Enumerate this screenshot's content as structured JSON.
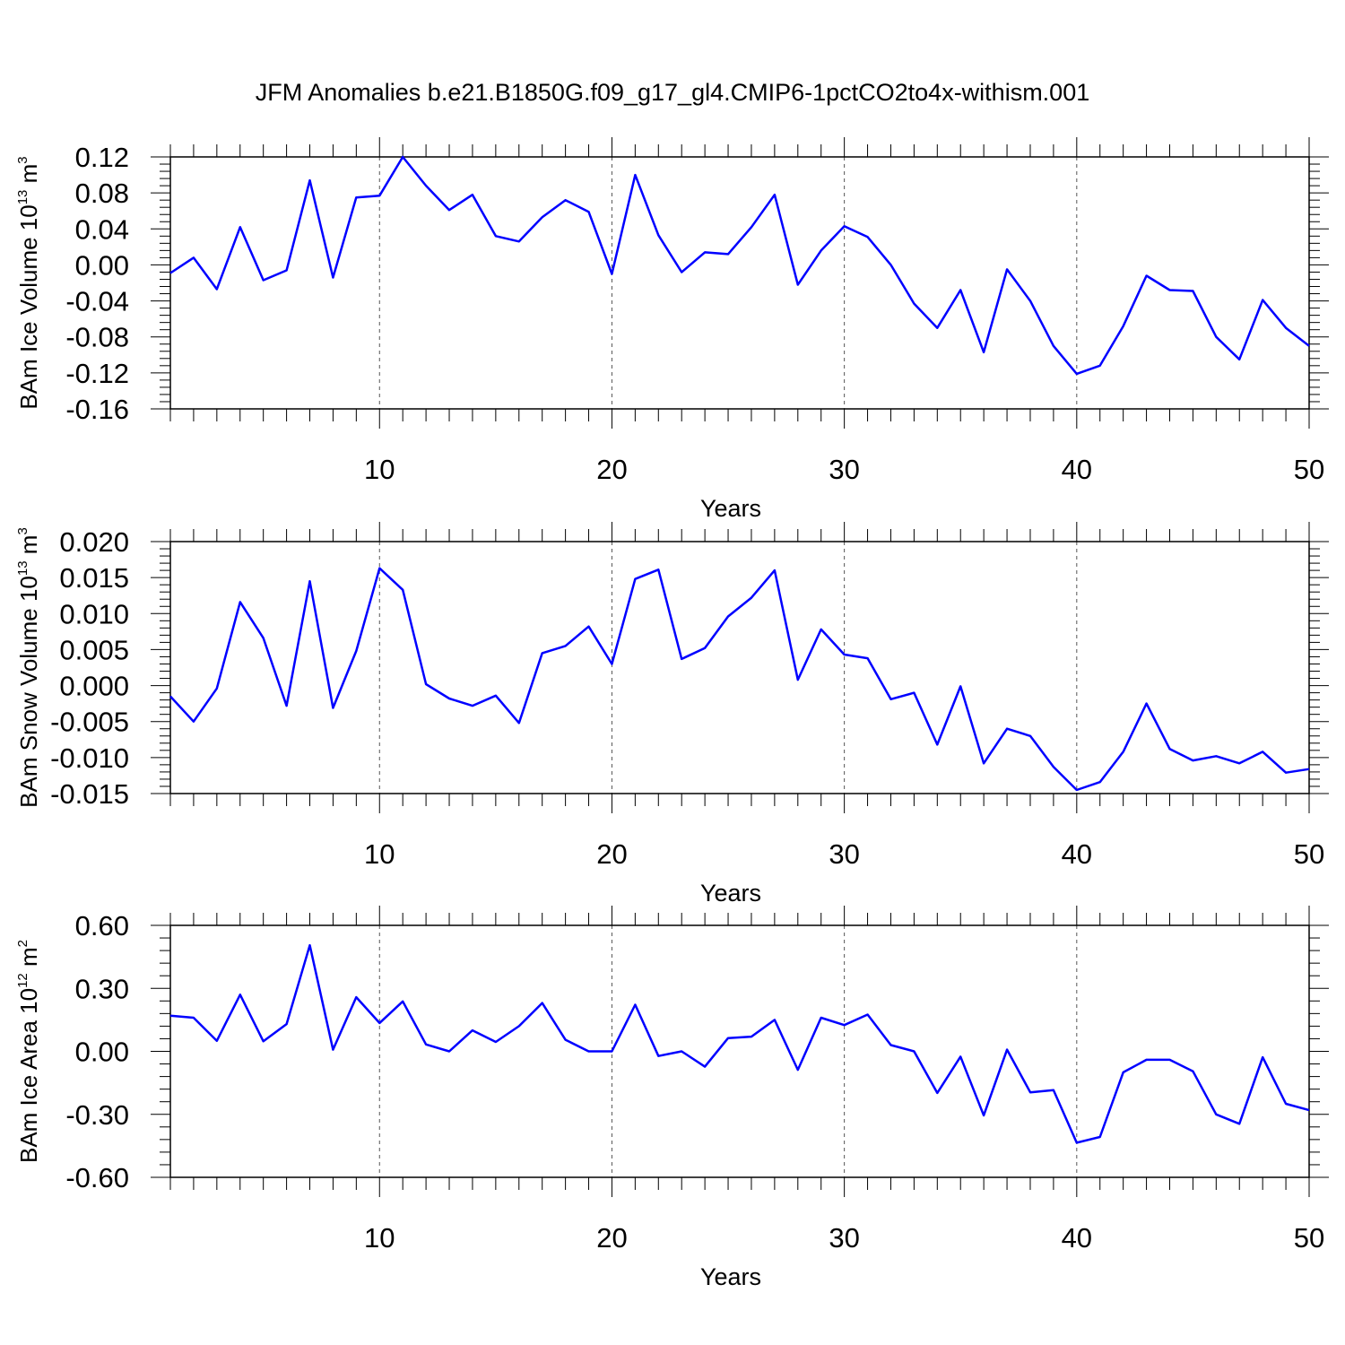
{
  "title": "JFM Anomalies b.e21.B1850G.f09_g17_gl4.CMIP6-1pctCO2to4x-withism.001",
  "colors": {
    "line": "#0000ff",
    "axis": "#000000",
    "grid": "#555555"
  },
  "chart_data": [
    {
      "type": "line",
      "ylabel": "BAm Ice Volume 10¹³ m³",
      "ylabel_parts": {
        "pre": "BAm Ice Volume 10",
        "exp": "13",
        "unit": " m",
        "unit_exp": "3"
      },
      "xlabel": "Years",
      "xlim": [
        1,
        50
      ],
      "ylim": [
        -0.16,
        0.12
      ],
      "xticks": [
        "10",
        "20",
        "30",
        "40",
        "50"
      ],
      "yticks": [
        "0.12",
        "0.08",
        "0.04",
        "0.00",
        "-0.04",
        "-0.08",
        "-0.12",
        "-0.16"
      ],
      "grid": "dashed vertical at x ticks",
      "series": [
        {
          "x": [
            1,
            2,
            3,
            4,
            5,
            6,
            7,
            8,
            9,
            10,
            11,
            12,
            13,
            14,
            15,
            16,
            17,
            18,
            19,
            20,
            21,
            22,
            23,
            24,
            25,
            26,
            27,
            28,
            29,
            30,
            31,
            32,
            33,
            34,
            35,
            36,
            37,
            38,
            39,
            40,
            41,
            42,
            43,
            44,
            45,
            46,
            47,
            48,
            49,
            50
          ],
          "values": [
            -0.009,
            0.008,
            -0.027,
            0.042,
            -0.017,
            -0.006,
            0.094,
            -0.014,
            0.075,
            0.077,
            0.12,
            0.088,
            0.061,
            0.078,
            0.032,
            0.026,
            0.053,
            0.072,
            0.059,
            -0.01,
            0.1,
            0.033,
            -0.008,
            0.014,
            0.012,
            0.042,
            0.078,
            -0.022,
            0.016,
            0.043,
            0.031,
            0.0,
            -0.043,
            -0.07,
            -0.028,
            -0.097,
            -0.005,
            -0.04,
            -0.09,
            -0.121,
            -0.112,
            -0.068,
            -0.012,
            -0.028,
            -0.029,
            -0.08,
            -0.105,
            -0.039,
            -0.07,
            -0.09
          ]
        }
      ]
    },
    {
      "type": "line",
      "ylabel": "BAm Snow Volume 10¹³ m³",
      "ylabel_parts": {
        "pre": "BAm Snow Volume 10",
        "exp": "13",
        "unit": " m",
        "unit_exp": "3"
      },
      "xlabel": "Years",
      "xlim": [
        1,
        50
      ],
      "ylim": [
        -0.015,
        0.02
      ],
      "xticks": [
        "10",
        "20",
        "30",
        "40",
        "50"
      ],
      "yticks": [
        "0.020",
        "0.015",
        "0.010",
        "0.005",
        "0.000",
        "-0.005",
        "-0.010",
        "-0.015"
      ],
      "grid": "dashed vertical at x ticks",
      "series": [
        {
          "x": [
            1,
            2,
            3,
            4,
            5,
            6,
            7,
            8,
            9,
            10,
            11,
            12,
            13,
            14,
            15,
            16,
            17,
            18,
            19,
            20,
            21,
            22,
            23,
            24,
            25,
            26,
            27,
            28,
            29,
            30,
            31,
            32,
            33,
            34,
            35,
            36,
            37,
            38,
            39,
            40,
            41,
            42,
            43,
            44,
            45,
            46,
            47,
            48,
            49,
            50
          ],
          "values": [
            -0.0015,
            -0.005,
            -0.0004,
            0.0116,
            0.0066,
            -0.0028,
            0.0145,
            -0.0031,
            0.0048,
            0.0163,
            0.0133,
            0.0002,
            -0.0018,
            -0.0028,
            -0.0014,
            -0.0052,
            0.0045,
            0.0055,
            0.0082,
            0.003,
            0.0148,
            0.0161,
            0.0037,
            0.0052,
            0.0096,
            0.0122,
            0.016,
            0.0008,
            0.0078,
            0.0043,
            0.0038,
            -0.0019,
            -0.001,
            -0.0082,
            -0.0001,
            -0.0108,
            -0.006,
            -0.007,
            -0.0113,
            -0.0145,
            -0.0134,
            -0.0092,
            -0.0025,
            -0.0088,
            -0.0104,
            -0.0098,
            -0.0108,
            -0.0092,
            -0.0121,
            -0.0116
          ]
        }
      ]
    },
    {
      "type": "line",
      "ylabel": "BAm Ice Area 10¹² m²",
      "ylabel_parts": {
        "pre": "BAm Ice Area 10",
        "exp": "12",
        "unit": " m",
        "unit_exp": "2"
      },
      "xlabel": "Years",
      "xlim": [
        1,
        50
      ],
      "ylim": [
        -0.6,
        0.6
      ],
      "xticks": [
        "10",
        "20",
        "30",
        "40",
        "50"
      ],
      "yticks": [
        "0.60",
        "0.30",
        "0.00",
        "-0.30",
        "-0.60"
      ],
      "grid": "dashed vertical at x ticks",
      "series": [
        {
          "x": [
            1,
            2,
            3,
            4,
            5,
            6,
            7,
            8,
            9,
            10,
            11,
            12,
            13,
            14,
            15,
            16,
            17,
            18,
            19,
            20,
            21,
            22,
            23,
            24,
            25,
            26,
            27,
            28,
            29,
            30,
            31,
            32,
            33,
            34,
            35,
            36,
            37,
            38,
            39,
            40,
            41,
            42,
            43,
            44,
            45,
            46,
            47,
            48,
            49,
            50
          ],
          "values": [
            0.17,
            0.16,
            0.05,
            0.27,
            0.048,
            0.13,
            0.505,
            0.008,
            0.258,
            0.135,
            0.238,
            0.033,
            0.0,
            0.1,
            0.045,
            0.12,
            0.23,
            0.055,
            0.0,
            0.0,
            0.222,
            -0.022,
            0.0,
            -0.073,
            0.063,
            0.07,
            0.15,
            -0.088,
            0.16,
            0.125,
            0.175,
            0.03,
            0.0,
            -0.198,
            -0.025,
            -0.305,
            0.008,
            -0.195,
            -0.185,
            -0.435,
            -0.408,
            -0.1,
            -0.04,
            -0.04,
            -0.095,
            -0.3,
            -0.345,
            -0.028,
            -0.25,
            -0.28
          ]
        }
      ]
    }
  ]
}
